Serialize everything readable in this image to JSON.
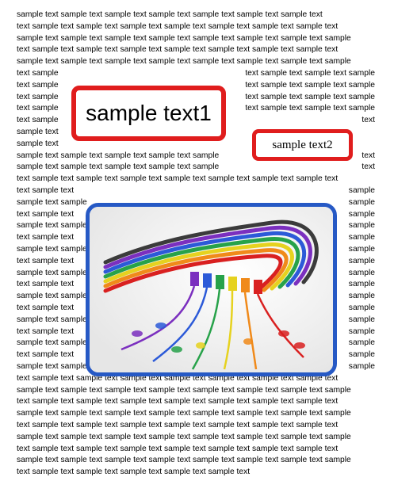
{
  "top_lines": [
    "sample text sample text sample text sample text sample text sample text sample text",
    "text sample text sample text sample text sample text sample text sample text sample text",
    "sample text sample text sample text sample text sample text sample text sample text sample",
    "text sample text sample text sample text sample text sample text sample text sample text",
    "sample text sample text sample text sample text sample text sample text sample text sample"
  ],
  "left_col_a": [
    "text sample",
    "text sample",
    "text sample",
    "text sample",
    "text sample",
    "sample text",
    "sample text"
  ],
  "right_col_a": [
    "text sample text sample text sample",
    "text sample text sample text sample",
    "text sample text sample text sample",
    "text sample text sample text sample",
    "text"
  ],
  "mid_lines": [
    {
      "left": "sample text sample text sample text sample text sample",
      "right": "text"
    },
    {
      "left": "sample text sample text sample text sample text sample",
      "right": "text"
    }
  ],
  "mid_full": "text sample text sample text sample text sample text sample text sample text sample text",
  "left_col_b": [
    "text sample text",
    "sample text sample",
    "text sample text",
    "sample text sample",
    "text sample text",
    "sample text sample",
    "text sample text",
    "sample text sample",
    "text sample text",
    "sample text sample",
    "text sample text",
    "sample text sample",
    "text sample text",
    "sample text sample",
    "text sample text",
    "sample text sample"
  ],
  "right_col_b": [
    "sample",
    "sample",
    "sample",
    "sample",
    "sample",
    "sample",
    "sample",
    "sample",
    "sample",
    "sample",
    "sample",
    "sample",
    "sample",
    "sample",
    "sample",
    "sample"
  ],
  "bottom_lines": [
    "text sample text sample text sample text sample text sample text sample text sample text",
    "sample text sample text sample text sample text sample text sample text sample text sample",
    "text sample text sample text sample text sample text sample text sample text sample text",
    "sample text sample text sample text sample text sample text sample text sample text sample",
    "text sample text sample text sample text sample text sample text sample text sample text",
    "sample text sample text sample text sample text sample text sample text sample text sample",
    "text sample text sample text sample text sample text sample text sample text sample text",
    "sample text sample text sample text sample text sample text sample text sample text sample",
    "text sample text sample text sample text sample text sample text"
  ],
  "callout_large": "sample text1",
  "callout_small": "sample text2",
  "colors": {
    "callout_border": "#e01d1d",
    "image_border": "#2659c5"
  }
}
